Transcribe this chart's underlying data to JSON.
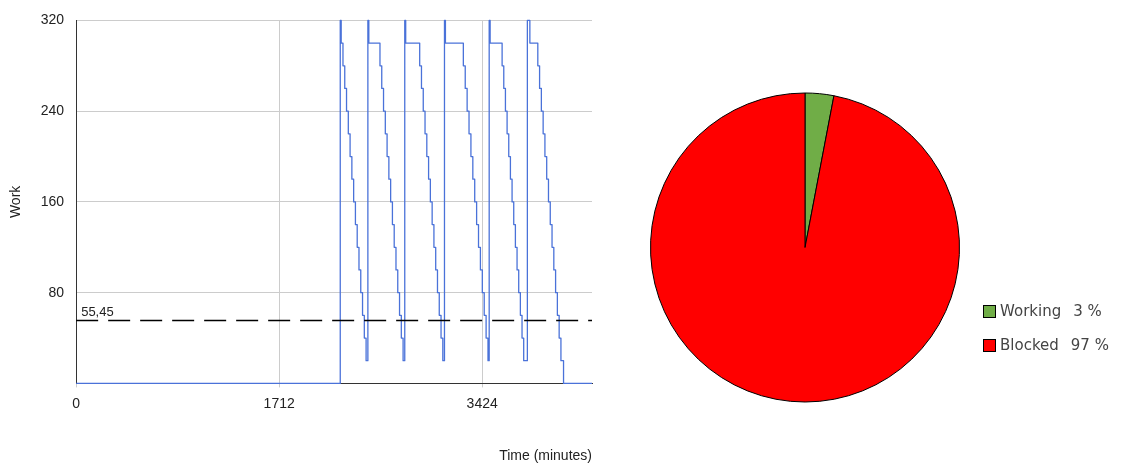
{
  "chart_data": [
    {
      "type": "step",
      "xlabel": "Time (minutes)",
      "ylabel": "Work",
      "xlim": [
        0,
        4350
      ],
      "ylim": [
        0,
        320
      ],
      "xticks": [
        0,
        1712,
        3424
      ],
      "yticks": [
        80,
        160,
        240,
        320
      ],
      "grid": true,
      "legend": false,
      "marker": "none",
      "series": [
        {
          "color": "#4a72d9",
          "x": [
            0,
            2227,
            2235,
            2250,
            2265,
            2280,
            2295,
            2310,
            2325,
            2340,
            2355,
            2370,
            2385,
            2400,
            2415,
            2430,
            2445,
            2460,
            2468,
            2562,
            2577,
            2592,
            2607,
            2622,
            2637,
            2652,
            2667,
            2682,
            2697,
            2712,
            2727,
            2742,
            2757,
            2771,
            2779,
            2897,
            2912,
            2927,
            2942,
            2957,
            2972,
            2987,
            3002,
            3017,
            3032,
            3047,
            3062,
            3077,
            3092,
            3106,
            3114,
            3265,
            3281,
            3297,
            3313,
            3329,
            3345,
            3361,
            3377,
            3393,
            3409,
            3425,
            3441,
            3457,
            3473,
            3483,
            3491,
            3592,
            3606,
            3620,
            3634,
            3648,
            3662,
            3676,
            3690,
            3704,
            3718,
            3732,
            3746,
            3760,
            3774,
            3805,
            3826,
            3893,
            3908,
            3923,
            3938,
            3953,
            3968,
            3983,
            3998,
            4013,
            4028,
            4043,
            4058,
            4073,
            4088,
            4110,
            4350
          ],
          "values": [
            0,
            320,
            300,
            280,
            260,
            240,
            220,
            200,
            180,
            160,
            140,
            120,
            100,
            80,
            60,
            40,
            20,
            320,
            300,
            280,
            260,
            240,
            220,
            200,
            180,
            160,
            140,
            120,
            100,
            80,
            60,
            40,
            20,
            320,
            300,
            280,
            260,
            240,
            220,
            200,
            180,
            160,
            140,
            120,
            100,
            80,
            60,
            40,
            20,
            320,
            300,
            280,
            260,
            240,
            220,
            200,
            180,
            160,
            140,
            120,
            100,
            80,
            60,
            40,
            20,
            320,
            300,
            280,
            260,
            240,
            220,
            200,
            180,
            160,
            140,
            120,
            100,
            80,
            60,
            40,
            20,
            320,
            300,
            280,
            260,
            240,
            220,
            200,
            180,
            160,
            140,
            120,
            100,
            80,
            60,
            40,
            20,
            0,
            0
          ]
        }
      ],
      "ref_lines": [
        {
          "axis": "y",
          "value": 55.45,
          "label": "55,45",
          "color": "#000000",
          "line_style": "dashed"
        }
      ]
    },
    {
      "type": "pie",
      "categories": [
        "Working",
        "Blocked"
      ],
      "values": [
        3,
        97
      ],
      "colors": [
        "#70ad47",
        "#ff0000"
      ],
      "value_labels": [
        "3 %",
        "97 %"
      ],
      "legend": "right"
    }
  ]
}
